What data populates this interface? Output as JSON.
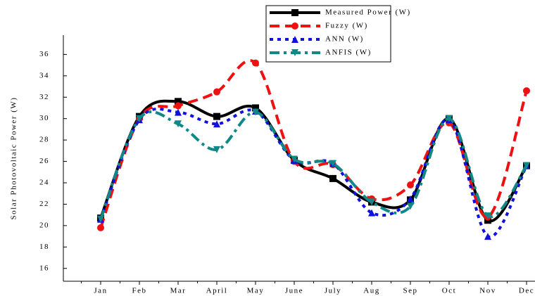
{
  "chart_data": {
    "type": "line",
    "y_label": "Solar Photovoltaic Power (W)",
    "categories": [
      "Jan",
      "Feb",
      "Mar",
      "April",
      "May",
      "June",
      "July",
      "Aug",
      "Sep",
      "Oct",
      "Nov",
      "Dec"
    ],
    "series": [
      {
        "name": "Measured Power (W)",
        "color": "#000000",
        "dash": "solid",
        "marker": "square",
        "values": [
          20.7,
          30.2,
          31.6,
          30.2,
          31.0,
          26.1,
          24.4,
          22.2,
          22.4,
          30.0,
          20.5,
          25.6
        ]
      },
      {
        "name": "Fuzzy (W)",
        "color": "#ee1111",
        "dash": "dash",
        "marker": "circle",
        "values": [
          19.8,
          30.0,
          31.2,
          32.5,
          35.2,
          26.0,
          25.7,
          22.5,
          23.8,
          29.6,
          20.8,
          32.6
        ]
      },
      {
        "name": "ANN (W)",
        "color": "#1111dd",
        "dash": "dot",
        "marker": "triangle-up",
        "values": [
          20.6,
          29.9,
          30.6,
          29.5,
          30.7,
          26.1,
          25.8,
          21.2,
          22.5,
          29.9,
          19.0,
          25.6
        ]
      },
      {
        "name": "ANFIS (W)",
        "color": "#118888",
        "dash": "dashdot",
        "marker": "triangle-down",
        "values": [
          20.6,
          30.0,
          29.5,
          27.1,
          30.6,
          26.2,
          25.8,
          22.2,
          21.8,
          30.0,
          20.9,
          25.6
        ]
      }
    ],
    "ylim": [
      14.8,
      37.8
    ],
    "yticks": [
      16,
      18,
      20,
      22,
      24,
      26,
      28,
      30,
      32,
      34,
      36
    ],
    "legend": "top-center"
  }
}
